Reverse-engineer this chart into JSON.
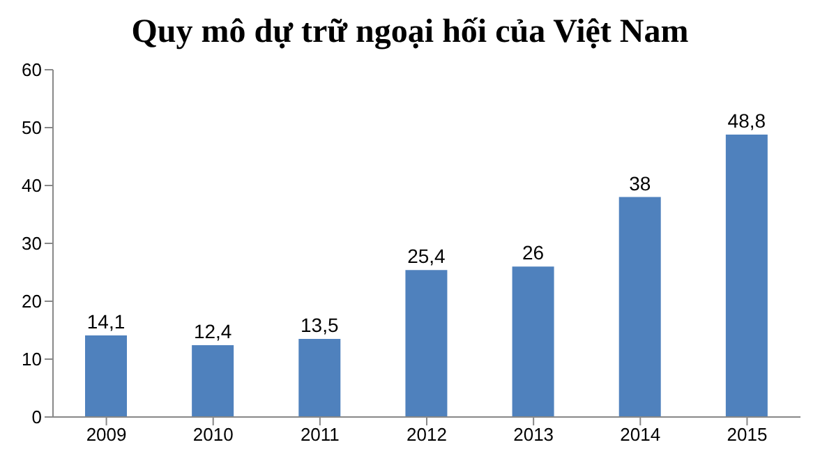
{
  "chart_data": {
    "type": "bar",
    "title": "Quy mô dự trữ ngoại hối của Việt Nam",
    "categories": [
      "2009",
      "2010",
      "2011",
      "2012",
      "2013",
      "2014",
      "2015"
    ],
    "values": [
      14.1,
      12.4,
      13.5,
      25.4,
      26,
      38,
      48.8
    ],
    "value_labels": [
      "14,1",
      "12,4",
      "13,5",
      "25,4",
      "26",
      "38",
      "48,8"
    ],
    "color": "#4f81bd",
    "ylim": [
      0,
      60
    ],
    "yticks": [
      0,
      10,
      20,
      30,
      40,
      50,
      60
    ],
    "grid": false
  }
}
